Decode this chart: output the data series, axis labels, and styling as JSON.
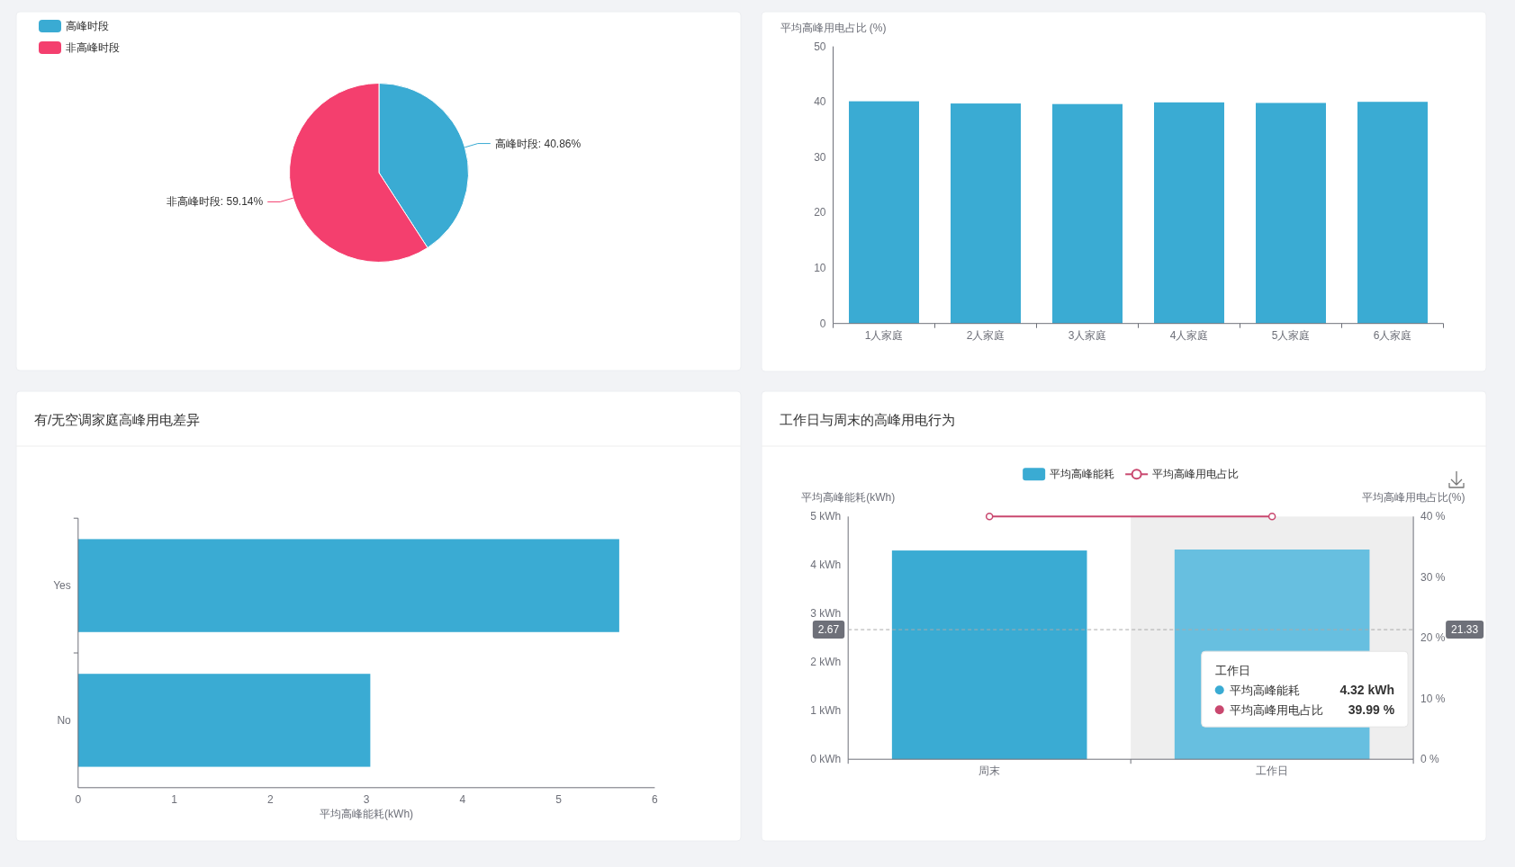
{
  "chart_data": [
    {
      "type": "pie",
      "categories": [
        "高峰时段",
        "非高峰时段"
      ],
      "values": [
        40.86,
        59.14
      ],
      "colors": [
        "#3aabd3",
        "#f43f6e"
      ],
      "value_labels": [
        "高峰时段: 40.86%",
        "非高峰时段: 59.14%"
      ],
      "legend": "top left"
    },
    {
      "type": "bar",
      "ylabel": "平均高峰用电占比 (%)",
      "categories": [
        "1人家庭",
        "2人家庭",
        "3人家庭",
        "4人家庭",
        "5人家庭",
        "6人家庭"
      ],
      "values": [
        40.1,
        39.7,
        39.6,
        39.9,
        39.8,
        40.0
      ],
      "color": "#3aabd3",
      "ylim": [
        0,
        50
      ],
      "yticks": [
        0,
        10,
        20,
        30,
        40,
        50
      ]
    },
    {
      "type": "bar",
      "orientation": "horizontal",
      "title": "有/无空调家庭高峰用电差异",
      "xlabel": "平均高峰能耗(kWh)",
      "categories": [
        "Yes",
        "No"
      ],
      "values": [
        5.63,
        3.04
      ],
      "color": "#3aabd3",
      "xlim": [
        0,
        6
      ],
      "xticks": [
        0,
        1,
        2,
        3,
        4,
        5,
        6
      ]
    },
    {
      "type": "bar",
      "title": "工作日与周末的高峰用电行为",
      "categories": [
        "周末",
        "工作日"
      ],
      "ylabel": "平均高峰能耗(kWh)",
      "y2label": "平均高峰用电占比(%)",
      "series": [
        {
          "name": "平均高峰能耗",
          "type": "bar",
          "color": "#3aabd3",
          "colors": [
            "#3aabd3",
            "#67bfe0"
          ],
          "values": [
            4.3,
            4.32
          ]
        },
        {
          "name": "平均高峰用电占比",
          "type": "line",
          "axis": "y2",
          "color": "#c9486f",
          "values": [
            40,
            39.99
          ]
        }
      ],
      "ylim": [
        0,
        5
      ],
      "yticks": [
        {
          "value": 0,
          "label": "0 kWh"
        },
        {
          "value": 1,
          "label": "1 kWh"
        },
        {
          "value": 2,
          "label": "2 kWh"
        },
        {
          "value": 3,
          "label": "3 kWh"
        },
        {
          "value": 4,
          "label": "4 kWh"
        },
        {
          "value": 5,
          "label": "5 kWh"
        }
      ],
      "y2lim": [
        0,
        40
      ],
      "y2ticks": [
        {
          "value": 0,
          "label": "0 %"
        },
        {
          "value": 10,
          "label": "10 %"
        },
        {
          "value": 20,
          "label": "20 %"
        },
        {
          "value": 30,
          "label": "30 %"
        },
        {
          "value": 40,
          "label": "40 %"
        }
      ],
      "legend": "top",
      "marker": "circle",
      "ref_lines": [
        {
          "axis": "y",
          "value": 2.67,
          "label": "2.67",
          "line_style": "dashed",
          "color": "#aaaaaa"
        }
      ],
      "bands": [
        {
          "axis": "x",
          "from": "工作日",
          "to": "工作日",
          "color": "#eeeeee"
        }
      ],
      "annotations": [
        "21.33",
        "工作日",
        "平均高峰能耗",
        "4.32 kWh",
        "平均高峰用电占比",
        "39.99 %"
      ]
    }
  ]
}
